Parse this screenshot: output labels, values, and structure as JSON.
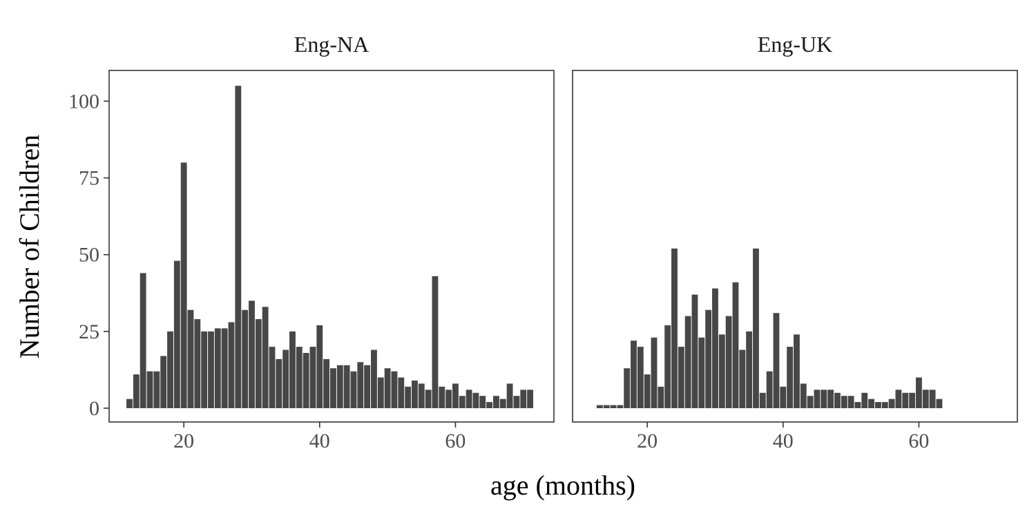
{
  "chart_data": {
    "type": "bar",
    "xlabel": "age (months)",
    "ylabel": "Number of Children",
    "shared_y": true,
    "ylim": [
      -4.5,
      110
    ],
    "xlim": [
      9,
      74.5
    ],
    "y_ticks": [
      0,
      25,
      50,
      75,
      100
    ],
    "x_ticks": [
      20,
      40,
      60
    ],
    "grid": false,
    "bar_color": "#474747",
    "panels": [
      {
        "title": "Eng-NA",
        "x": [
          12,
          13,
          14,
          15,
          16,
          17,
          18,
          19,
          20,
          21,
          22,
          23,
          24,
          25,
          26,
          27,
          28,
          29,
          30,
          31,
          32,
          33,
          34,
          35,
          36,
          37,
          38,
          39,
          40,
          41,
          42,
          43,
          44,
          45,
          46,
          47,
          48,
          49,
          50,
          51,
          52,
          53,
          54,
          55,
          56,
          57,
          58,
          59,
          60,
          61,
          62,
          63,
          64,
          65,
          66,
          67,
          68,
          69,
          70,
          71
        ],
        "values": [
          3,
          11,
          44,
          12,
          12,
          17,
          25,
          48,
          80,
          32,
          29,
          25,
          25,
          26,
          26,
          28,
          105,
          32,
          35,
          29,
          33,
          20,
          16,
          19,
          25,
          20,
          18,
          20,
          27,
          16,
          13,
          14,
          14,
          12,
          15,
          14,
          19,
          10,
          13,
          12,
          10,
          7,
          9,
          8,
          6,
          43,
          7,
          6,
          8,
          4,
          6,
          5,
          4,
          2,
          4,
          3,
          8,
          4,
          6,
          6
        ]
      },
      {
        "title": "Eng-UK",
        "x": [
          13,
          14,
          15,
          16,
          17,
          18,
          19,
          20,
          21,
          22,
          23,
          24,
          25,
          26,
          27,
          28,
          29,
          30,
          31,
          32,
          33,
          34,
          35,
          36,
          37,
          38,
          39,
          40,
          41,
          42,
          43,
          44,
          45,
          46,
          47,
          48,
          49,
          50,
          51,
          52,
          53,
          54,
          55,
          56,
          57,
          58,
          59,
          60,
          61,
          62,
          63
        ],
        "values": [
          1,
          1,
          1,
          1,
          13,
          22,
          20,
          11,
          23,
          7,
          27,
          52,
          20,
          30,
          37,
          23,
          32,
          39,
          24,
          30,
          41,
          19,
          25,
          52,
          5,
          12,
          31,
          7,
          20,
          24,
          8,
          4,
          6,
          6,
          6,
          5,
          4,
          4,
          2,
          5,
          3,
          2,
          2,
          3,
          6,
          5,
          5,
          10,
          6,
          6,
          3
        ]
      }
    ]
  }
}
